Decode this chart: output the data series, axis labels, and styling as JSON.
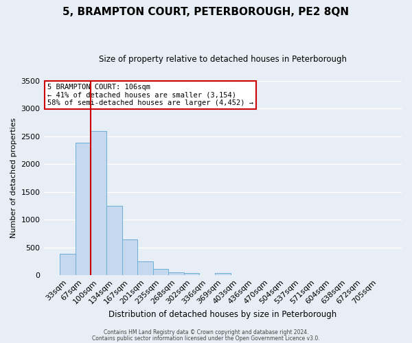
{
  "title": "5, BRAMPTON COURT, PETERBOROUGH, PE2 8QN",
  "subtitle": "Size of property relative to detached houses in Peterborough",
  "xlabel": "Distribution of detached houses by size in Peterborough",
  "ylabel": "Number of detached properties",
  "bar_labels": [
    "33sqm",
    "67sqm",
    "100sqm",
    "134sqm",
    "167sqm",
    "201sqm",
    "235sqm",
    "268sqm",
    "302sqm",
    "336sqm",
    "369sqm",
    "403sqm",
    "436sqm",
    "470sqm",
    "504sqm",
    "537sqm",
    "571sqm",
    "604sqm",
    "638sqm",
    "672sqm",
    "705sqm"
  ],
  "bar_values": [
    390,
    2390,
    2600,
    1250,
    640,
    255,
    110,
    55,
    40,
    0,
    40,
    0,
    0,
    0,
    0,
    0,
    0,
    0,
    0,
    0,
    0
  ],
  "bar_color": "#c5d8ef",
  "bar_edge_color": "#6baed6",
  "background_color": "#e8eef5",
  "grid_color": "#ffffff",
  "red_line_x": 1.5,
  "ylim": [
    0,
    3500
  ],
  "yticks": [
    0,
    500,
    1000,
    1500,
    2000,
    2500,
    3000,
    3500
  ],
  "annotation_title": "5 BRAMPTON COURT: 106sqm",
  "annotation_line1": "← 41% of detached houses are smaller (3,154)",
  "annotation_line2": "58% of semi-detached houses are larger (4,452) →",
  "annotation_box_facecolor": "#ffffff",
  "annotation_box_edgecolor": "#cc0000",
  "footer1": "Contains HM Land Registry data © Crown copyright and database right 2024.",
  "footer2": "Contains public sector information licensed under the Open Government Licence v3.0."
}
